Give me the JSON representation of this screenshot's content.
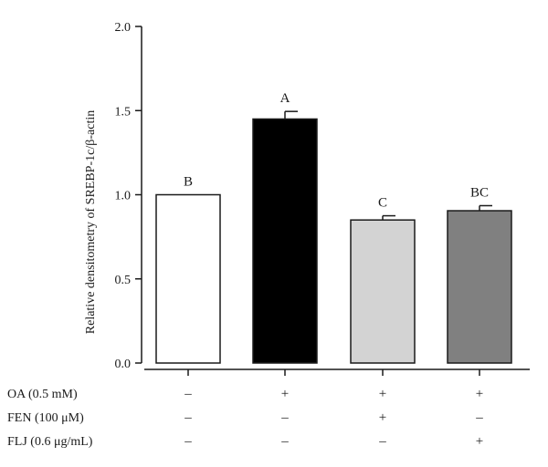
{
  "chart_data": {
    "type": "bar",
    "title": "",
    "ylabel": "Relative densitometry of SREBP-1c/β-actin",
    "xlabel": "",
    "ylim": [
      0,
      2.0
    ],
    "yticks": [
      "0.0",
      "0.5",
      "1.0",
      "1.5",
      "2.0"
    ],
    "ytick_values": [
      0,
      0.5,
      1.0,
      1.5,
      2.0
    ],
    "grid": false,
    "bars": [
      {
        "value": 1.0,
        "error": 0.0,
        "label": "B",
        "color": "#ffffff"
      },
      {
        "value": 1.45,
        "error": 0.045,
        "label": "A",
        "color": "#000000"
      },
      {
        "value": 0.85,
        "error": 0.025,
        "label": "C",
        "color": "#d3d3d3"
      },
      {
        "value": 0.905,
        "error": 0.03,
        "label": "BC",
        "color": "#808080"
      }
    ],
    "conditions": [
      {
        "name": "OA (0.5 mM)",
        "signs": [
          "–",
          "+",
          "+",
          "+"
        ]
      },
      {
        "name": "FEN (100 μM)",
        "signs": [
          "–",
          "–",
          "+",
          "–"
        ]
      },
      {
        "name": "FLJ (0.6 μg/mL)",
        "signs": [
          "–",
          "–",
          "–",
          "+"
        ]
      }
    ]
  }
}
